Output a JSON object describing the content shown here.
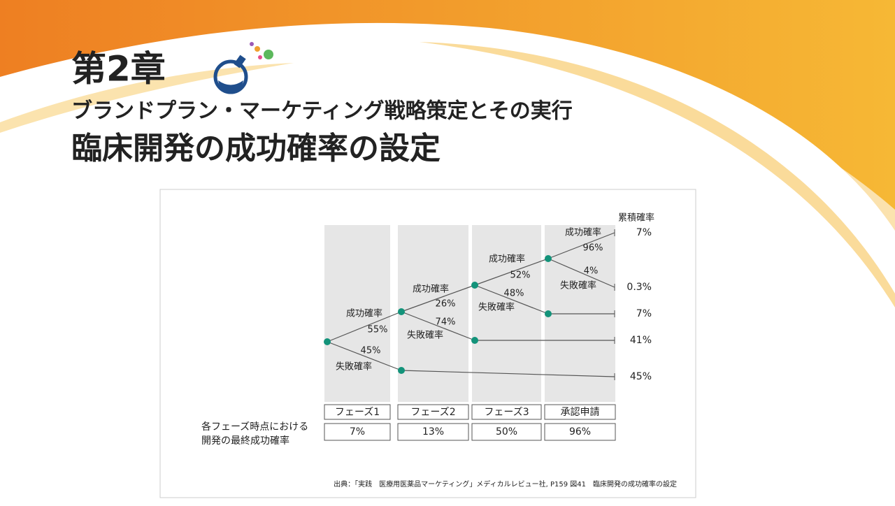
{
  "header": {
    "chapter": "第2章",
    "subtitle": "ブランドプラン・マーケティング戦略策定とその実行",
    "title": "臨床開発の成功確率の設定"
  },
  "diagram": {
    "phases": [
      "フェーズ1",
      "フェーズ2",
      "フェーズ3",
      "承認申請"
    ],
    "branch_labels": [
      "成功確率",
      "55%",
      "45%",
      "失敗確率",
      "成功確率",
      "26%",
      "74%",
      "失敗確率",
      "成功確率",
      "52%",
      "48%",
      "失敗確率",
      "成功確率",
      "96%",
      "4%",
      "失敗確率"
    ],
    "cumulative": {
      "title": "累積確率",
      "values": [
        "7%",
        "0.3%",
        "7%",
        "41%",
        "45%"
      ]
    },
    "row_label": [
      "各フェーズ時点における",
      "開発の最終成功確率"
    ],
    "final_probabilities": [
      "7%",
      "13%",
      "50%",
      "96%"
    ],
    "source": "出典：「実践　医療用医薬品マーケティング」メディカルレビュー社, P159 図41　臨床開発の成功確率の設定"
  }
}
